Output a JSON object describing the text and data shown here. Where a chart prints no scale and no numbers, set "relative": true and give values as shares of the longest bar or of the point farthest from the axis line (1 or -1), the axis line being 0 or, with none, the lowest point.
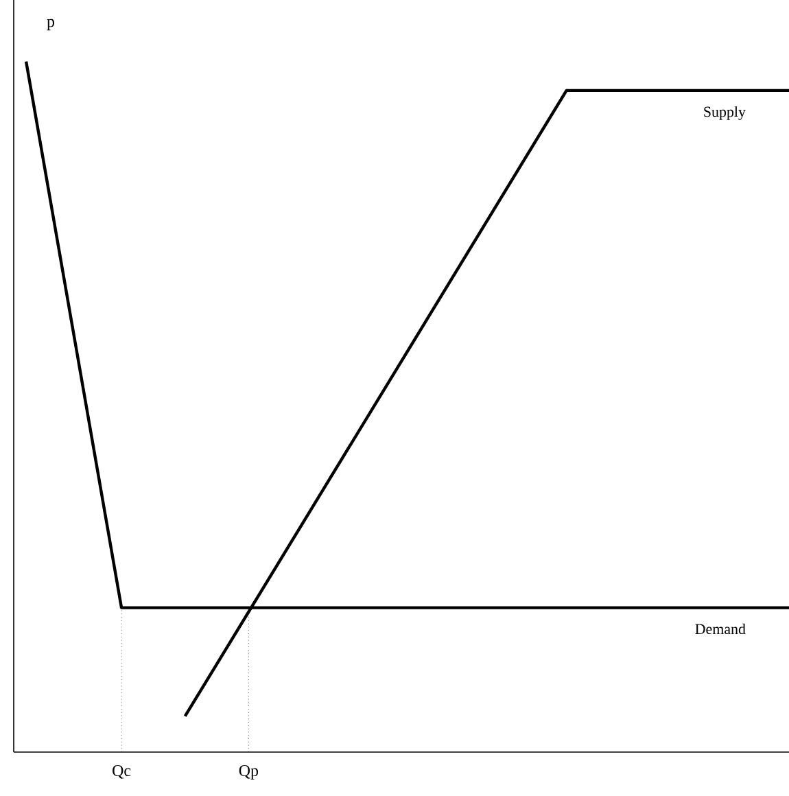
{
  "chart_data": {
    "type": "line",
    "relative": true,
    "ylabel": "p",
    "categories": [
      null,
      null,
      null,
      "Qc",
      null,
      null,
      null,
      "Qp",
      null,
      null,
      null,
      null,
      null,
      null,
      null,
      null,
      null,
      null,
      null,
      null,
      null,
      null,
      null,
      null,
      null
    ],
    "series": [
      {
        "name": "Demand",
        "color": "#000000",
        "values": [
          1,
          null,
          null,
          0.209,
          null,
          null,
          null,
          null,
          null,
          null,
          null,
          null,
          null,
          null,
          null,
          null,
          null,
          null,
          null,
          null,
          null,
          null,
          null,
          null,
          0.209
        ]
      },
      {
        "name": "Supply",
        "color": "#000000",
        "values": [
          null,
          null,
          null,
          null,
          null,
          0.052,
          null,
          null,
          null,
          null,
          null,
          null,
          null,
          null,
          null,
          null,
          null,
          0.958,
          null,
          null,
          null,
          null,
          null,
          null,
          0.958
        ]
      }
    ],
    "ref_lines": [
      {
        "axis": "x",
        "value": "Qc",
        "line_style": "dotted"
      },
      {
        "axis": "x",
        "value": "Qp",
        "line_style": "dotted"
      }
    ],
    "marker": "none",
    "line_style": "solid"
  }
}
